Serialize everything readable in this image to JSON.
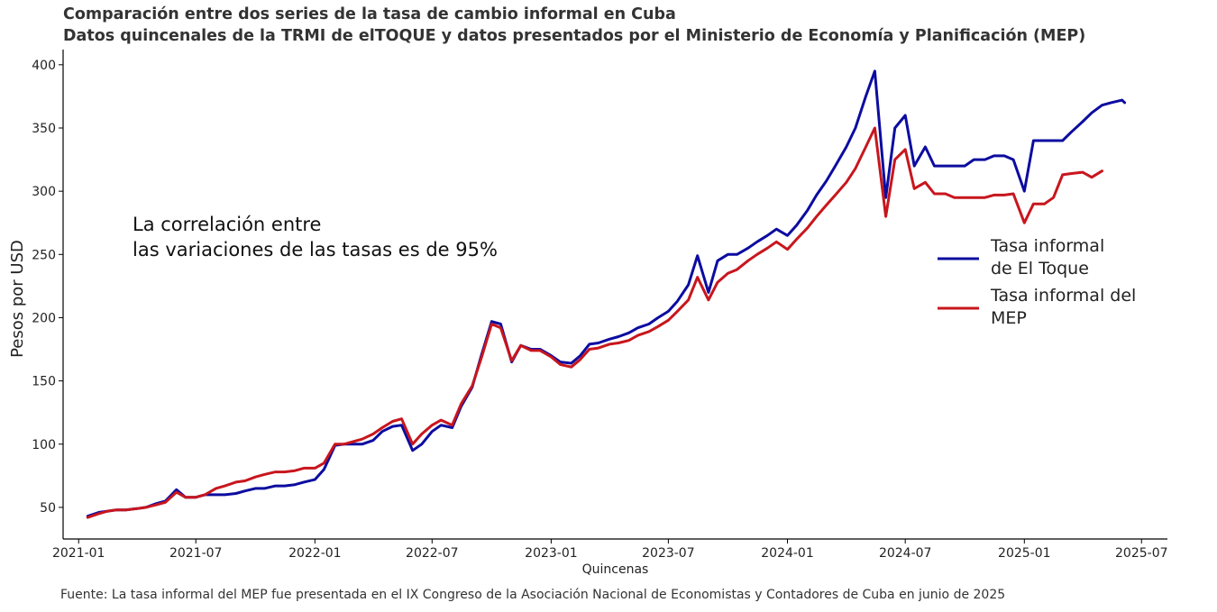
{
  "chart_data": {
    "type": "line",
    "title": "Comparación entre dos series de la tasa de cambio informal en Cuba",
    "subtitle": "Datos quincenales de la TRMI de elTOQUE y datos presentados por el Ministerio de Economía y Planificación (MEP)",
    "xlabel": "Quincenas",
    "ylabel": "Pesos por USD",
    "annotation": [
      "La correlación entre",
      "las variaciones de las tasas es de 95%"
    ],
    "x_ticks": [
      "2021-01",
      "2021-07",
      "2022-01",
      "2022-07",
      "2023-01",
      "2023-07",
      "2024-01",
      "2024-07",
      "2025-01",
      "2025-07"
    ],
    "y_ticks": [
      50,
      100,
      150,
      200,
      250,
      300,
      350,
      400
    ],
    "xlim": [
      "2020-12-08",
      "2025-08-10"
    ],
    "ylim": [
      25,
      412
    ],
    "grid": false,
    "legend": "right",
    "series": [
      {
        "name": "Tasa informal de El Toque",
        "legend_lines": [
          "Tasa informal",
          "de El Toque"
        ],
        "color": "#0c0ca0",
        "points": [
          [
            "2021-01-15",
            43
          ],
          [
            "2021-02-01",
            46
          ],
          [
            "2021-02-15",
            47
          ],
          [
            "2021-03-01",
            48
          ],
          [
            "2021-03-15",
            48
          ],
          [
            "2021-04-01",
            49
          ],
          [
            "2021-04-15",
            50
          ],
          [
            "2021-05-01",
            53
          ],
          [
            "2021-05-15",
            55
          ],
          [
            "2021-06-01",
            64
          ],
          [
            "2021-06-15",
            58
          ],
          [
            "2021-07-01",
            58
          ],
          [
            "2021-07-15",
            60
          ],
          [
            "2021-08-01",
            60
          ],
          [
            "2021-08-15",
            60
          ],
          [
            "2021-09-01",
            61
          ],
          [
            "2021-09-15",
            63
          ],
          [
            "2021-10-01",
            65
          ],
          [
            "2021-10-15",
            65
          ],
          [
            "2021-11-01",
            67
          ],
          [
            "2021-11-15",
            67
          ],
          [
            "2021-12-01",
            68
          ],
          [
            "2021-12-15",
            70
          ],
          [
            "2022-01-01",
            72
          ],
          [
            "2022-01-15",
            80
          ],
          [
            "2022-02-01",
            99
          ],
          [
            "2022-02-15",
            100
          ],
          [
            "2022-03-01",
            100
          ],
          [
            "2022-03-15",
            100
          ],
          [
            "2022-04-01",
            103
          ],
          [
            "2022-04-15",
            110
          ],
          [
            "2022-05-01",
            114
          ],
          [
            "2022-05-15",
            115
          ],
          [
            "2022-06-01",
            95
          ],
          [
            "2022-06-15",
            100
          ],
          [
            "2022-07-01",
            110
          ],
          [
            "2022-07-15",
            115
          ],
          [
            "2022-08-01",
            113
          ],
          [
            "2022-08-15",
            130
          ],
          [
            "2022-09-01",
            145
          ],
          [
            "2022-09-15",
            170
          ],
          [
            "2022-10-01",
            197
          ],
          [
            "2022-10-15",
            195
          ],
          [
            "2022-11-01",
            165
          ],
          [
            "2022-11-15",
            178
          ],
          [
            "2022-12-01",
            175
          ],
          [
            "2022-12-15",
            175
          ],
          [
            "2023-01-01",
            170
          ],
          [
            "2023-01-15",
            165
          ],
          [
            "2023-02-01",
            164
          ],
          [
            "2023-02-15",
            170
          ],
          [
            "2023-03-01",
            179
          ],
          [
            "2023-03-15",
            180
          ],
          [
            "2023-04-01",
            183
          ],
          [
            "2023-04-15",
            185
          ],
          [
            "2023-05-01",
            188
          ],
          [
            "2023-05-15",
            192
          ],
          [
            "2023-06-01",
            195
          ],
          [
            "2023-06-15",
            200
          ],
          [
            "2023-07-01",
            205
          ],
          [
            "2023-07-15",
            213
          ],
          [
            "2023-08-01",
            226
          ],
          [
            "2023-08-15",
            249
          ],
          [
            "2023-09-01",
            220
          ],
          [
            "2023-09-15",
            245
          ],
          [
            "2023-10-01",
            250
          ],
          [
            "2023-10-15",
            250
          ],
          [
            "2023-11-01",
            255
          ],
          [
            "2023-11-15",
            260
          ],
          [
            "2023-12-01",
            265
          ],
          [
            "2023-12-15",
            270
          ],
          [
            "2024-01-01",
            265
          ],
          [
            "2024-01-15",
            273
          ],
          [
            "2024-02-01",
            285
          ],
          [
            "2024-02-15",
            297
          ],
          [
            "2024-03-01",
            308
          ],
          [
            "2024-03-15",
            320
          ],
          [
            "2024-04-01",
            335
          ],
          [
            "2024-04-15",
            350
          ],
          [
            "2024-05-01",
            375
          ],
          [
            "2024-05-15",
            395
          ],
          [
            "2024-06-01",
            295
          ],
          [
            "2024-06-15",
            350
          ],
          [
            "2024-07-01",
            360
          ],
          [
            "2024-07-15",
            320
          ],
          [
            "2024-08-01",
            335
          ],
          [
            "2024-08-15",
            320
          ],
          [
            "2024-09-01",
            320
          ],
          [
            "2024-09-15",
            320
          ],
          [
            "2024-10-01",
            320
          ],
          [
            "2024-10-15",
            325
          ],
          [
            "2024-11-01",
            325
          ],
          [
            "2024-11-15",
            328
          ],
          [
            "2024-12-01",
            328
          ],
          [
            "2024-12-15",
            325
          ],
          [
            "2025-01-01",
            300
          ],
          [
            "2025-01-15",
            340
          ],
          [
            "2025-02-01",
            340
          ],
          [
            "2025-02-15",
            340
          ],
          [
            "2025-03-01",
            340
          ],
          [
            "2025-03-15",
            347
          ],
          [
            "2025-04-01",
            355
          ],
          [
            "2025-04-15",
            362
          ],
          [
            "2025-05-01",
            368
          ],
          [
            "2025-05-15",
            370
          ],
          [
            "2025-06-01",
            372
          ],
          [
            "2025-06-05",
            370
          ]
        ]
      },
      {
        "name": "Tasa informal del MEP",
        "legend_lines": [
          "Tasa informal del",
          "MEP"
        ],
        "color": "#c8161d",
        "points": [
          [
            "2021-01-15",
            42
          ],
          [
            "2021-02-01",
            45
          ],
          [
            "2021-02-15",
            47
          ],
          [
            "2021-03-01",
            48
          ],
          [
            "2021-03-15",
            48
          ],
          [
            "2021-04-01",
            49
          ],
          [
            "2021-04-15",
            50
          ],
          [
            "2021-05-01",
            52
          ],
          [
            "2021-05-15",
            54
          ],
          [
            "2021-06-01",
            62
          ],
          [
            "2021-06-15",
            58
          ],
          [
            "2021-07-01",
            58
          ],
          [
            "2021-07-15",
            60
          ],
          [
            "2021-08-01",
            65
          ],
          [
            "2021-08-15",
            67
          ],
          [
            "2021-09-01",
            70
          ],
          [
            "2021-09-15",
            71
          ],
          [
            "2021-10-01",
            74
          ],
          [
            "2021-10-15",
            76
          ],
          [
            "2021-11-01",
            78
          ],
          [
            "2021-11-15",
            78
          ],
          [
            "2021-12-01",
            79
          ],
          [
            "2021-12-15",
            81
          ],
          [
            "2022-01-01",
            81
          ],
          [
            "2022-01-15",
            85
          ],
          [
            "2022-02-01",
            100
          ],
          [
            "2022-02-15",
            100
          ],
          [
            "2022-03-01",
            102
          ],
          [
            "2022-03-15",
            104
          ],
          [
            "2022-04-01",
            108
          ],
          [
            "2022-04-15",
            113
          ],
          [
            "2022-05-01",
            118
          ],
          [
            "2022-05-15",
            120
          ],
          [
            "2022-06-01",
            100
          ],
          [
            "2022-06-15",
            108
          ],
          [
            "2022-07-01",
            115
          ],
          [
            "2022-07-15",
            119
          ],
          [
            "2022-08-01",
            115
          ],
          [
            "2022-08-15",
            132
          ],
          [
            "2022-09-01",
            146
          ],
          [
            "2022-09-15",
            168
          ],
          [
            "2022-10-01",
            195
          ],
          [
            "2022-10-15",
            192
          ],
          [
            "2022-11-01",
            166
          ],
          [
            "2022-11-15",
            178
          ],
          [
            "2022-12-01",
            174
          ],
          [
            "2022-12-15",
            174
          ],
          [
            "2023-01-01",
            169
          ],
          [
            "2023-01-15",
            163
          ],
          [
            "2023-02-01",
            161
          ],
          [
            "2023-02-15",
            167
          ],
          [
            "2023-03-01",
            175
          ],
          [
            "2023-03-15",
            176
          ],
          [
            "2023-04-01",
            179
          ],
          [
            "2023-04-15",
            180
          ],
          [
            "2023-05-01",
            182
          ],
          [
            "2023-05-15",
            186
          ],
          [
            "2023-06-01",
            189
          ],
          [
            "2023-06-15",
            193
          ],
          [
            "2023-07-01",
            198
          ],
          [
            "2023-07-15",
            205
          ],
          [
            "2023-08-01",
            214
          ],
          [
            "2023-08-15",
            232
          ],
          [
            "2023-09-01",
            214
          ],
          [
            "2023-09-15",
            228
          ],
          [
            "2023-10-01",
            235
          ],
          [
            "2023-10-15",
            238
          ],
          [
            "2023-11-01",
            245
          ],
          [
            "2023-11-15",
            250
          ],
          [
            "2023-12-01",
            255
          ],
          [
            "2023-12-15",
            260
          ],
          [
            "2024-01-01",
            254
          ],
          [
            "2024-01-15",
            262
          ],
          [
            "2024-02-01",
            271
          ],
          [
            "2024-02-15",
            280
          ],
          [
            "2024-03-01",
            289
          ],
          [
            "2024-03-15",
            297
          ],
          [
            "2024-04-01",
            307
          ],
          [
            "2024-04-15",
            318
          ],
          [
            "2024-05-01",
            335
          ],
          [
            "2024-05-15",
            350
          ],
          [
            "2024-06-01",
            280
          ],
          [
            "2024-06-15",
            325
          ],
          [
            "2024-07-01",
            333
          ],
          [
            "2024-07-15",
            302
          ],
          [
            "2024-08-01",
            307
          ],
          [
            "2024-08-15",
            298
          ],
          [
            "2024-09-01",
            298
          ],
          [
            "2024-09-15",
            295
          ],
          [
            "2024-10-01",
            295
          ],
          [
            "2024-10-15",
            295
          ],
          [
            "2024-11-01",
            295
          ],
          [
            "2024-11-15",
            297
          ],
          [
            "2024-12-01",
            297
          ],
          [
            "2024-12-15",
            298
          ],
          [
            "2025-01-01",
            275
          ],
          [
            "2025-01-15",
            290
          ],
          [
            "2025-02-01",
            290
          ],
          [
            "2025-02-15",
            295
          ],
          [
            "2025-03-01",
            313
          ],
          [
            "2025-03-15",
            314
          ],
          [
            "2025-04-01",
            315
          ],
          [
            "2025-04-15",
            311
          ],
          [
            "2025-05-01",
            316
          ]
        ]
      }
    ]
  },
  "footer": {
    "source": "Fuente: La tasa informal del MEP fue presentada en el IX Congreso de la Asociación Nacional de Economistas y Contadores de Cuba en junio de 2025"
  }
}
